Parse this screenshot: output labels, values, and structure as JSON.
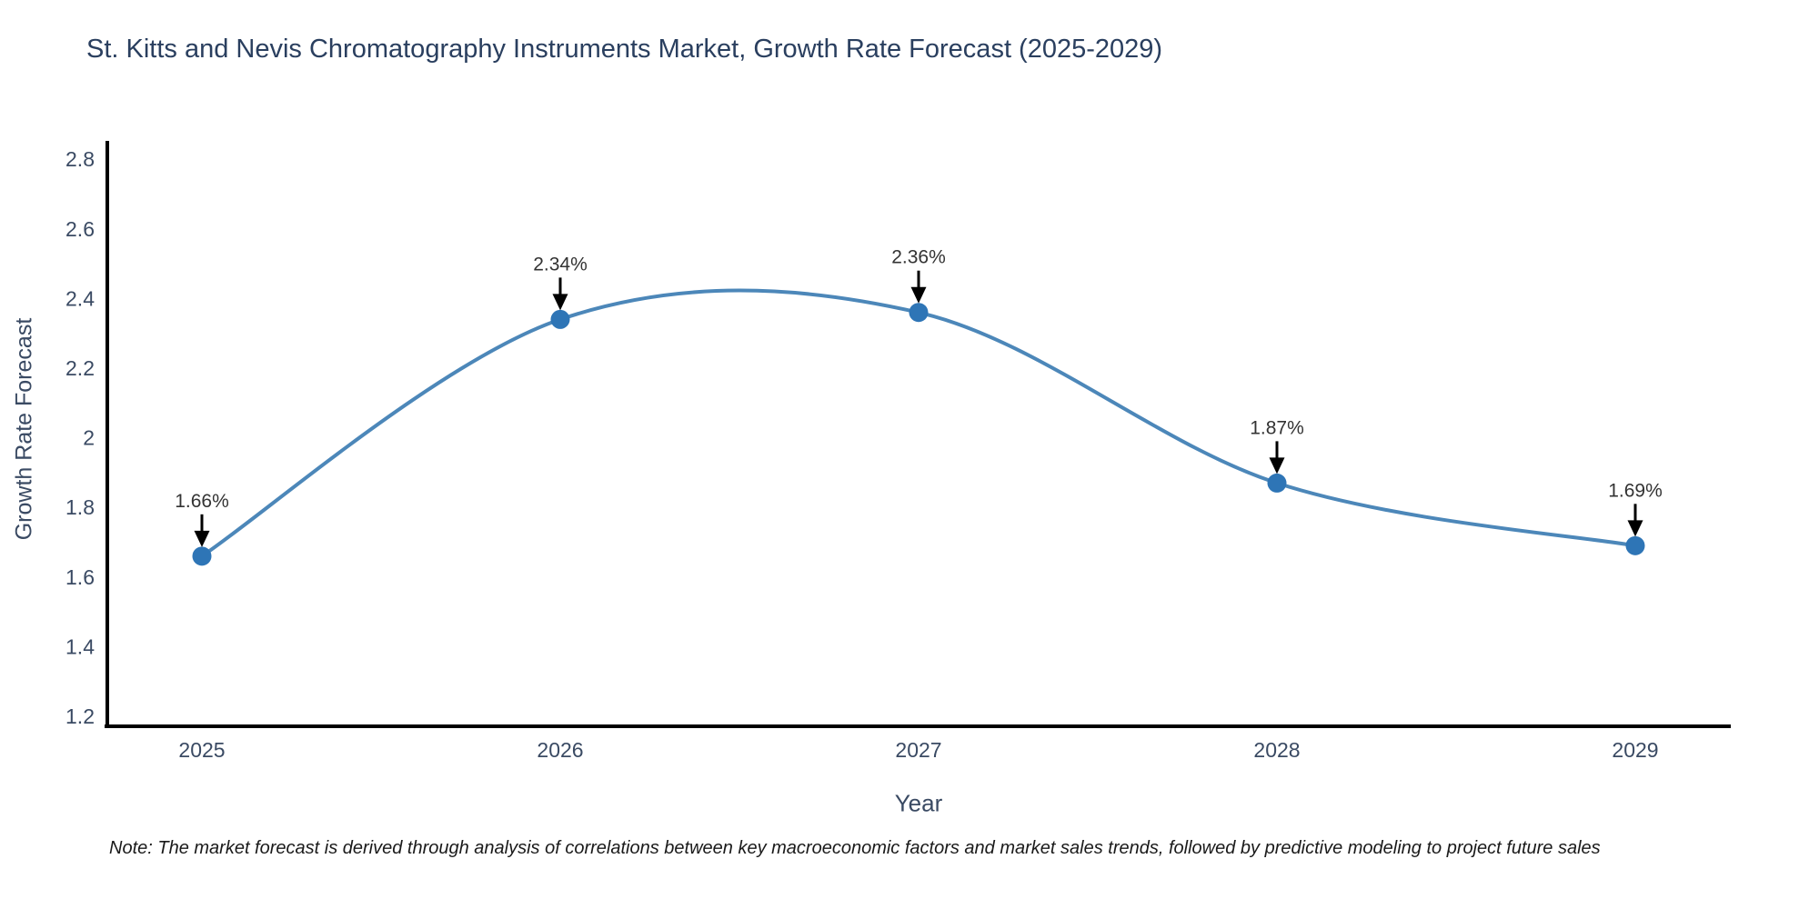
{
  "chart_data": {
    "type": "line",
    "line_shape": "spline",
    "title": "St. Kitts and Nevis Chromatography Instruments Market, Growth Rate Forecast (2025-2029)",
    "xlabel": "Year",
    "ylabel": "Growth Rate Forecast",
    "categories": [
      "2025",
      "2026",
      "2027",
      "2028",
      "2029"
    ],
    "series": [
      {
        "name": "Growth Rate Forecast",
        "values": [
          1.66,
          2.34,
          2.36,
          1.87,
          1.69
        ]
      }
    ],
    "annotations": [
      "1.66%",
      "2.34%",
      "2.36%",
      "1.87%",
      "1.69%"
    ],
    "ytick_labels": [
      "1.2",
      "1.4",
      "1.6",
      "1.8",
      "2",
      "2.2",
      "2.4",
      "2.6",
      "2.8"
    ],
    "ylim": [
      1.1,
      2.87
    ],
    "grid": false,
    "legend_position": "none",
    "colors": {
      "line": "#4c87b9",
      "marker": "#2e75b6",
      "axis": "#000000",
      "title_text": "#2a3f5f",
      "tick_text": "#3a4a63",
      "annotation_text": "#333333"
    },
    "note": "Note: The market forecast is derived through analysis of correlations between key macroeconomic factors and market sales trends, followed by predictive modeling to project future sales"
  }
}
